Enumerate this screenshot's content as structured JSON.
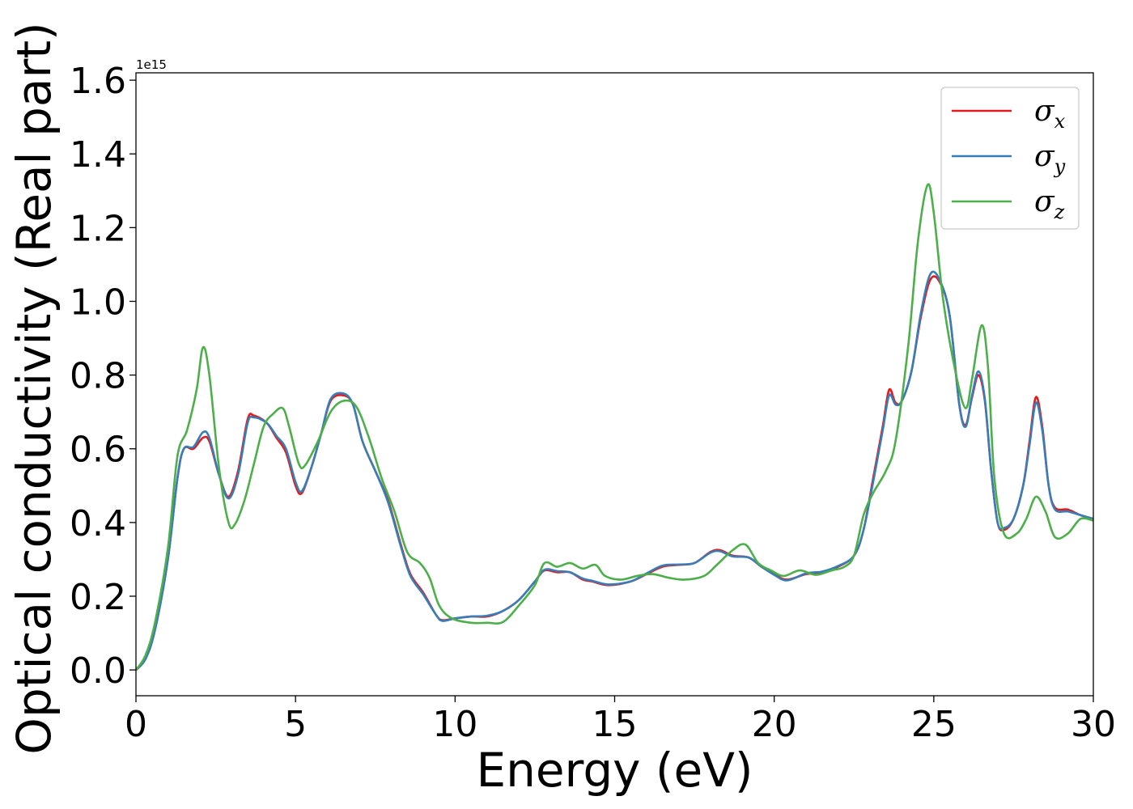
{
  "chart_data": {
    "type": "line",
    "title": "",
    "xlabel": "Energy (eV)",
    "ylabel": "Optical conductivity (Real part)",
    "y_offset_label": "1e15",
    "xlim": [
      0,
      30
    ],
    "ylim": [
      -0.07,
      1.62
    ],
    "x_ticks": [
      0,
      5,
      10,
      15,
      20,
      25,
      30
    ],
    "x_tick_labels": [
      "0",
      "5",
      "10",
      "15",
      "20",
      "25",
      "30"
    ],
    "y_ticks": [
      0.0,
      0.2,
      0.4,
      0.6,
      0.8,
      1.0,
      1.2,
      1.4,
      1.6
    ],
    "y_tick_labels": [
      "0.0",
      "0.2",
      "0.4",
      "0.6",
      "0.8",
      "1.0",
      "1.2",
      "1.4",
      "1.6"
    ],
    "grid": false,
    "legend_position": "top-right",
    "series": [
      {
        "name": "σx",
        "name_base": "σ",
        "name_sub": "x",
        "color": "#e41a1c",
        "points": [
          [
            0,
            0
          ],
          [
            0.3,
            0.03
          ],
          [
            0.6,
            0.11
          ],
          [
            1.0,
            0.3
          ],
          [
            1.3,
            0.52
          ],
          [
            1.5,
            0.6
          ],
          [
            1.8,
            0.6
          ],
          [
            2.1,
            0.63
          ],
          [
            2.3,
            0.62
          ],
          [
            2.6,
            0.53
          ],
          [
            2.9,
            0.47
          ],
          [
            3.2,
            0.54
          ],
          [
            3.5,
            0.68
          ],
          [
            3.7,
            0.69
          ],
          [
            4.1,
            0.67
          ],
          [
            4.4,
            0.63
          ],
          [
            4.7,
            0.59
          ],
          [
            5.0,
            0.5
          ],
          [
            5.2,
            0.48
          ],
          [
            5.5,
            0.55
          ],
          [
            5.8,
            0.64
          ],
          [
            6.1,
            0.73
          ],
          [
            6.5,
            0.745
          ],
          [
            6.8,
            0.72
          ],
          [
            7.1,
            0.62
          ],
          [
            7.5,
            0.54
          ],
          [
            7.9,
            0.46
          ],
          [
            8.3,
            0.34
          ],
          [
            8.6,
            0.26
          ],
          [
            9.0,
            0.21
          ],
          [
            9.4,
            0.15
          ],
          [
            9.6,
            0.135
          ],
          [
            10.0,
            0.14
          ],
          [
            10.5,
            0.145
          ],
          [
            11.0,
            0.145
          ],
          [
            11.5,
            0.16
          ],
          [
            12.0,
            0.19
          ],
          [
            12.5,
            0.24
          ],
          [
            12.8,
            0.27
          ],
          [
            13.2,
            0.265
          ],
          [
            13.6,
            0.265
          ],
          [
            14.0,
            0.245
          ],
          [
            14.3,
            0.24
          ],
          [
            14.8,
            0.23
          ],
          [
            15.5,
            0.24
          ],
          [
            16.0,
            0.26
          ],
          [
            16.5,
            0.28
          ],
          [
            17.0,
            0.285
          ],
          [
            17.5,
            0.29
          ],
          [
            18.0,
            0.32
          ],
          [
            18.3,
            0.325
          ],
          [
            18.7,
            0.31
          ],
          [
            19.2,
            0.305
          ],
          [
            19.6,
            0.28
          ],
          [
            20.0,
            0.26
          ],
          [
            20.4,
            0.245
          ],
          [
            21.0,
            0.26
          ],
          [
            21.5,
            0.265
          ],
          [
            22.0,
            0.28
          ],
          [
            22.5,
            0.31
          ],
          [
            22.8,
            0.38
          ],
          [
            23.1,
            0.52
          ],
          [
            23.4,
            0.66
          ],
          [
            23.6,
            0.76
          ],
          [
            23.8,
            0.725
          ],
          [
            24.0,
            0.73
          ],
          [
            24.3,
            0.81
          ],
          [
            24.6,
            0.96
          ],
          [
            24.9,
            1.06
          ],
          [
            25.2,
            1.05
          ],
          [
            25.5,
            0.96
          ],
          [
            25.8,
            0.72
          ],
          [
            26.0,
            0.665
          ],
          [
            26.2,
            0.74
          ],
          [
            26.4,
            0.8
          ],
          [
            26.6,
            0.73
          ],
          [
            26.8,
            0.54
          ],
          [
            27.0,
            0.4
          ],
          [
            27.2,
            0.38
          ],
          [
            27.5,
            0.41
          ],
          [
            27.8,
            0.5
          ],
          [
            28.0,
            0.62
          ],
          [
            28.2,
            0.74
          ],
          [
            28.4,
            0.66
          ],
          [
            28.6,
            0.5
          ],
          [
            28.8,
            0.44
          ],
          [
            29.2,
            0.435
          ],
          [
            29.6,
            0.42
          ],
          [
            30.0,
            0.41
          ]
        ]
      },
      {
        "name": "σy",
        "name_base": "σ",
        "name_sub": "y",
        "color": "#377eb8",
        "points": [
          [
            0,
            0
          ],
          [
            0.3,
            0.03
          ],
          [
            0.6,
            0.11
          ],
          [
            1.0,
            0.3
          ],
          [
            1.3,
            0.52
          ],
          [
            1.5,
            0.6
          ],
          [
            1.8,
            0.605
          ],
          [
            2.1,
            0.645
          ],
          [
            2.3,
            0.63
          ],
          [
            2.6,
            0.53
          ],
          [
            2.9,
            0.465
          ],
          [
            3.2,
            0.53
          ],
          [
            3.5,
            0.67
          ],
          [
            3.7,
            0.685
          ],
          [
            4.1,
            0.67
          ],
          [
            4.4,
            0.635
          ],
          [
            4.7,
            0.6
          ],
          [
            5.0,
            0.51
          ],
          [
            5.2,
            0.485
          ],
          [
            5.5,
            0.55
          ],
          [
            5.8,
            0.64
          ],
          [
            6.1,
            0.735
          ],
          [
            6.5,
            0.75
          ],
          [
            6.8,
            0.72
          ],
          [
            7.1,
            0.62
          ],
          [
            7.5,
            0.54
          ],
          [
            7.9,
            0.455
          ],
          [
            8.3,
            0.335
          ],
          [
            8.6,
            0.255
          ],
          [
            9.0,
            0.205
          ],
          [
            9.4,
            0.15
          ],
          [
            9.6,
            0.133
          ],
          [
            10.0,
            0.14
          ],
          [
            10.5,
            0.145
          ],
          [
            11.0,
            0.147
          ],
          [
            11.5,
            0.16
          ],
          [
            12.0,
            0.19
          ],
          [
            12.5,
            0.24
          ],
          [
            12.8,
            0.272
          ],
          [
            13.2,
            0.268
          ],
          [
            13.6,
            0.265
          ],
          [
            14.0,
            0.248
          ],
          [
            14.3,
            0.242
          ],
          [
            14.8,
            0.232
          ],
          [
            15.5,
            0.24
          ],
          [
            16.0,
            0.262
          ],
          [
            16.5,
            0.283
          ],
          [
            17.0,
            0.286
          ],
          [
            17.5,
            0.29
          ],
          [
            18.0,
            0.318
          ],
          [
            18.3,
            0.322
          ],
          [
            18.7,
            0.308
          ],
          [
            19.2,
            0.305
          ],
          [
            19.6,
            0.28
          ],
          [
            20.0,
            0.258
          ],
          [
            20.4,
            0.243
          ],
          [
            21.0,
            0.262
          ],
          [
            21.5,
            0.267
          ],
          [
            22.0,
            0.282
          ],
          [
            22.5,
            0.31
          ],
          [
            22.8,
            0.38
          ],
          [
            23.1,
            0.51
          ],
          [
            23.4,
            0.65
          ],
          [
            23.6,
            0.745
          ],
          [
            23.8,
            0.72
          ],
          [
            24.0,
            0.73
          ],
          [
            24.3,
            0.81
          ],
          [
            24.6,
            0.97
          ],
          [
            24.9,
            1.075
          ],
          [
            25.2,
            1.055
          ],
          [
            25.5,
            0.96
          ],
          [
            25.8,
            0.72
          ],
          [
            26.0,
            0.66
          ],
          [
            26.2,
            0.745
          ],
          [
            26.4,
            0.81
          ],
          [
            26.6,
            0.735
          ],
          [
            26.8,
            0.54
          ],
          [
            27.0,
            0.4
          ],
          [
            27.2,
            0.385
          ],
          [
            27.5,
            0.41
          ],
          [
            27.8,
            0.5
          ],
          [
            28.0,
            0.61
          ],
          [
            28.2,
            0.725
          ],
          [
            28.4,
            0.65
          ],
          [
            28.6,
            0.5
          ],
          [
            28.8,
            0.435
          ],
          [
            29.2,
            0.43
          ],
          [
            29.6,
            0.42
          ],
          [
            30.0,
            0.41
          ]
        ]
      },
      {
        "name": "σz",
        "name_base": "σ",
        "name_sub": "z",
        "color": "#4daf4a",
        "points": [
          [
            0,
            0
          ],
          [
            0.3,
            0.04
          ],
          [
            0.6,
            0.13
          ],
          [
            1.0,
            0.33
          ],
          [
            1.3,
            0.58
          ],
          [
            1.6,
            0.65
          ],
          [
            1.9,
            0.76
          ],
          [
            2.1,
            0.875
          ],
          [
            2.3,
            0.8
          ],
          [
            2.6,
            0.55
          ],
          [
            2.9,
            0.4
          ],
          [
            3.1,
            0.395
          ],
          [
            3.4,
            0.46
          ],
          [
            3.7,
            0.56
          ],
          [
            4.0,
            0.66
          ],
          [
            4.3,
            0.695
          ],
          [
            4.6,
            0.71
          ],
          [
            4.8,
            0.66
          ],
          [
            5.1,
            0.56
          ],
          [
            5.3,
            0.555
          ],
          [
            5.7,
            0.62
          ],
          [
            6.1,
            0.7
          ],
          [
            6.5,
            0.73
          ],
          [
            6.9,
            0.715
          ],
          [
            7.3,
            0.63
          ],
          [
            7.7,
            0.52
          ],
          [
            8.1,
            0.43
          ],
          [
            8.5,
            0.32
          ],
          [
            8.9,
            0.29
          ],
          [
            9.2,
            0.25
          ],
          [
            9.5,
            0.175
          ],
          [
            9.9,
            0.14
          ],
          [
            10.5,
            0.128
          ],
          [
            11.0,
            0.128
          ],
          [
            11.5,
            0.13
          ],
          [
            12.0,
            0.175
          ],
          [
            12.5,
            0.23
          ],
          [
            12.8,
            0.29
          ],
          [
            13.2,
            0.28
          ],
          [
            13.6,
            0.29
          ],
          [
            14.0,
            0.275
          ],
          [
            14.4,
            0.285
          ],
          [
            14.7,
            0.255
          ],
          [
            15.2,
            0.245
          ],
          [
            15.7,
            0.255
          ],
          [
            16.2,
            0.26
          ],
          [
            16.7,
            0.25
          ],
          [
            17.2,
            0.245
          ],
          [
            17.8,
            0.255
          ],
          [
            18.2,
            0.285
          ],
          [
            18.7,
            0.325
          ],
          [
            19.1,
            0.34
          ],
          [
            19.5,
            0.29
          ],
          [
            19.9,
            0.27
          ],
          [
            20.3,
            0.255
          ],
          [
            20.8,
            0.27
          ],
          [
            21.3,
            0.258
          ],
          [
            21.8,
            0.27
          ],
          [
            22.2,
            0.28
          ],
          [
            22.5,
            0.31
          ],
          [
            22.8,
            0.42
          ],
          [
            23.1,
            0.48
          ],
          [
            23.5,
            0.54
          ],
          [
            23.8,
            0.62
          ],
          [
            24.2,
            0.88
          ],
          [
            24.5,
            1.16
          ],
          [
            24.8,
            1.315
          ],
          [
            25.0,
            1.24
          ],
          [
            25.3,
            1.0
          ],
          [
            25.7,
            0.8
          ],
          [
            26.0,
            0.71
          ],
          [
            26.2,
            0.79
          ],
          [
            26.5,
            0.935
          ],
          [
            26.7,
            0.82
          ],
          [
            26.9,
            0.52
          ],
          [
            27.2,
            0.37
          ],
          [
            27.6,
            0.37
          ],
          [
            27.9,
            0.41
          ],
          [
            28.2,
            0.47
          ],
          [
            28.5,
            0.43
          ],
          [
            28.8,
            0.36
          ],
          [
            29.2,
            0.37
          ],
          [
            29.6,
            0.41
          ],
          [
            30.0,
            0.405
          ]
        ]
      }
    ]
  }
}
